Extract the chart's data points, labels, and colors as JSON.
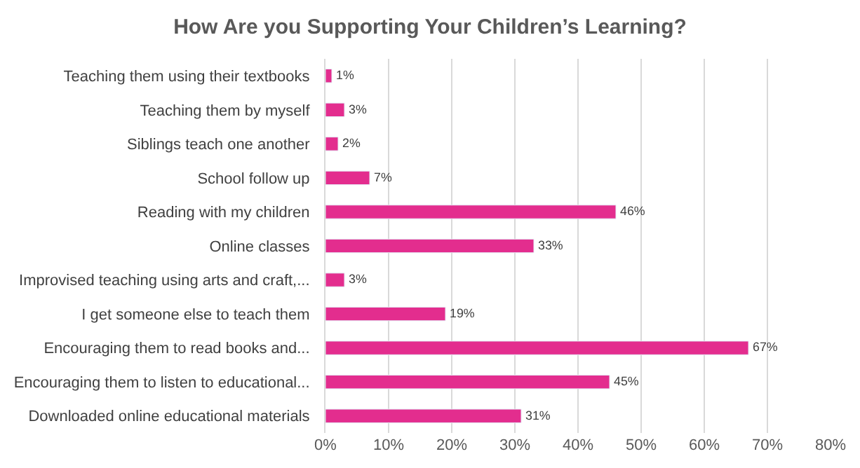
{
  "chart_data": {
    "type": "bar",
    "orientation": "horizontal",
    "title": "How Are you Supporting Your Children’s Learning?",
    "categories": [
      "Teaching them using their textbooks",
      "Teaching them by myself",
      "Siblings teach one another",
      "School follow up",
      "Reading with my children",
      "Online classes",
      "Improvised teaching using arts and craft,...",
      "I get someone else to teach them",
      "Encouraging them to read books and...",
      "Encouraging them to listen to educational...",
      "Downloaded online educational materials"
    ],
    "values": [
      1,
      3,
      2,
      7,
      46,
      33,
      3,
      19,
      67,
      45,
      31
    ],
    "value_labels": [
      "1%",
      "3%",
      "2%",
      "7%",
      "46%",
      "33%",
      "3%",
      "19%",
      "67%",
      "45%",
      "31%"
    ],
    "color": "#e32d8e",
    "xlim": [
      0,
      80
    ],
    "xticks": [
      {
        "value": 0,
        "label": "0%"
      },
      {
        "value": 10,
        "label": "10%"
      },
      {
        "value": 20,
        "label": "20%"
      },
      {
        "value": 30,
        "label": "30%"
      },
      {
        "value": 40,
        "label": "40%"
      },
      {
        "value": 50,
        "label": "50%"
      },
      {
        "value": 60,
        "label": "60%"
      },
      {
        "value": 70,
        "label": "70%"
      },
      {
        "value": 80,
        "label": "80%"
      }
    ],
    "grid": "x",
    "legend": false
  }
}
